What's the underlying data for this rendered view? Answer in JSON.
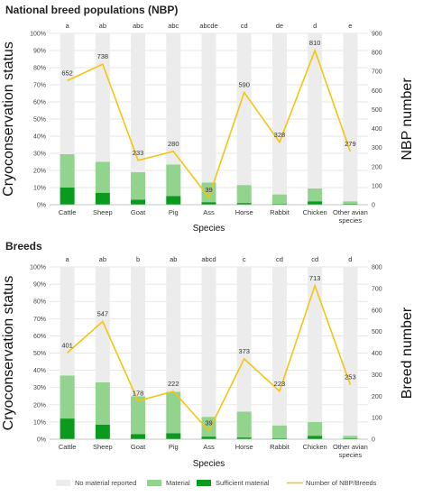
{
  "colors": {
    "no_material": "#ececec",
    "material": "#92d38d",
    "sufficient": "#0a9a1d",
    "line": "#f5c40f",
    "grid": "#dedede"
  },
  "legend": {
    "no_material": "No material reported",
    "material": "Material",
    "sufficient": "Sufficient material",
    "line": "Number of NBP/Breeds"
  },
  "chart_data": [
    {
      "type": "bar",
      "title": "National breed populations  (NBP)",
      "xlabel": "Species",
      "ylabel": "Cryoconservation status",
      "y2label": "NBP number",
      "ylim": [
        0,
        100
      ],
      "y2lim": [
        0,
        900
      ],
      "y2ticks": [
        0,
        100,
        200,
        300,
        400,
        500,
        600,
        700,
        800,
        900
      ],
      "categories": [
        "Cattle",
        "Sheep",
        "Goat",
        "Pig",
        "Ass",
        "Horse",
        "Rabbit",
        "Chicken",
        "Other avian species"
      ],
      "significance": [
        "a",
        "ab",
        "abc",
        "abc",
        "abcde",
        "cd",
        "de",
        "d",
        "e"
      ],
      "series": [
        {
          "name": "No material reported",
          "values": [
            70.5,
            75,
            81,
            76.5,
            87,
            88.5,
            94,
            90.5,
            98
          ]
        },
        {
          "name": "Material",
          "values": [
            19.5,
            18,
            16,
            18.5,
            11.5,
            10.5,
            5.5,
            7.5,
            1.5
          ]
        },
        {
          "name": "Sufficient material",
          "values": [
            10,
            7,
            3,
            5,
            1.5,
            1,
            0.5,
            2,
            0.5
          ]
        },
        {
          "name": "Number of NBP/Breeds",
          "axis": "secondary",
          "type": "line",
          "values": [
            652,
            738,
            233,
            280,
            39,
            590,
            328,
            810,
            279
          ]
        }
      ]
    },
    {
      "type": "bar",
      "title": "Breeds",
      "xlabel": "Species",
      "ylabel": "Cryoconservation status",
      "y2label": "Breed number",
      "ylim": [
        0,
        100
      ],
      "y2lim": [
        0,
        800
      ],
      "y2ticks": [
        0,
        100,
        200,
        300,
        400,
        500,
        600,
        700,
        800
      ],
      "categories": [
        "Cattle",
        "Sheep",
        "Goat",
        "Pig",
        "Ass",
        "Horse",
        "Rabbit",
        "Chicken",
        "Other avian species"
      ],
      "significance": [
        "a",
        "ab",
        "b",
        "ab",
        "abcd",
        "c",
        "cd",
        "cd",
        "d"
      ],
      "series": [
        {
          "name": "No material reported",
          "values": [
            63,
            67,
            75,
            72.5,
            87,
            84,
            92,
            90,
            98
          ]
        },
        {
          "name": "Material",
          "values": [
            25,
            24.5,
            22,
            24,
            11.5,
            15,
            7.5,
            8,
            1.5
          ]
        },
        {
          "name": "Sufficient material",
          "values": [
            12,
            8.5,
            3,
            3.5,
            1.5,
            1,
            0.5,
            2,
            0.5
          ]
        },
        {
          "name": "Number of NBP/Breeds",
          "axis": "secondary",
          "type": "line",
          "values": [
            401,
            547,
            178,
            222,
            39,
            373,
            223,
            713,
            253
          ]
        }
      ]
    }
  ]
}
